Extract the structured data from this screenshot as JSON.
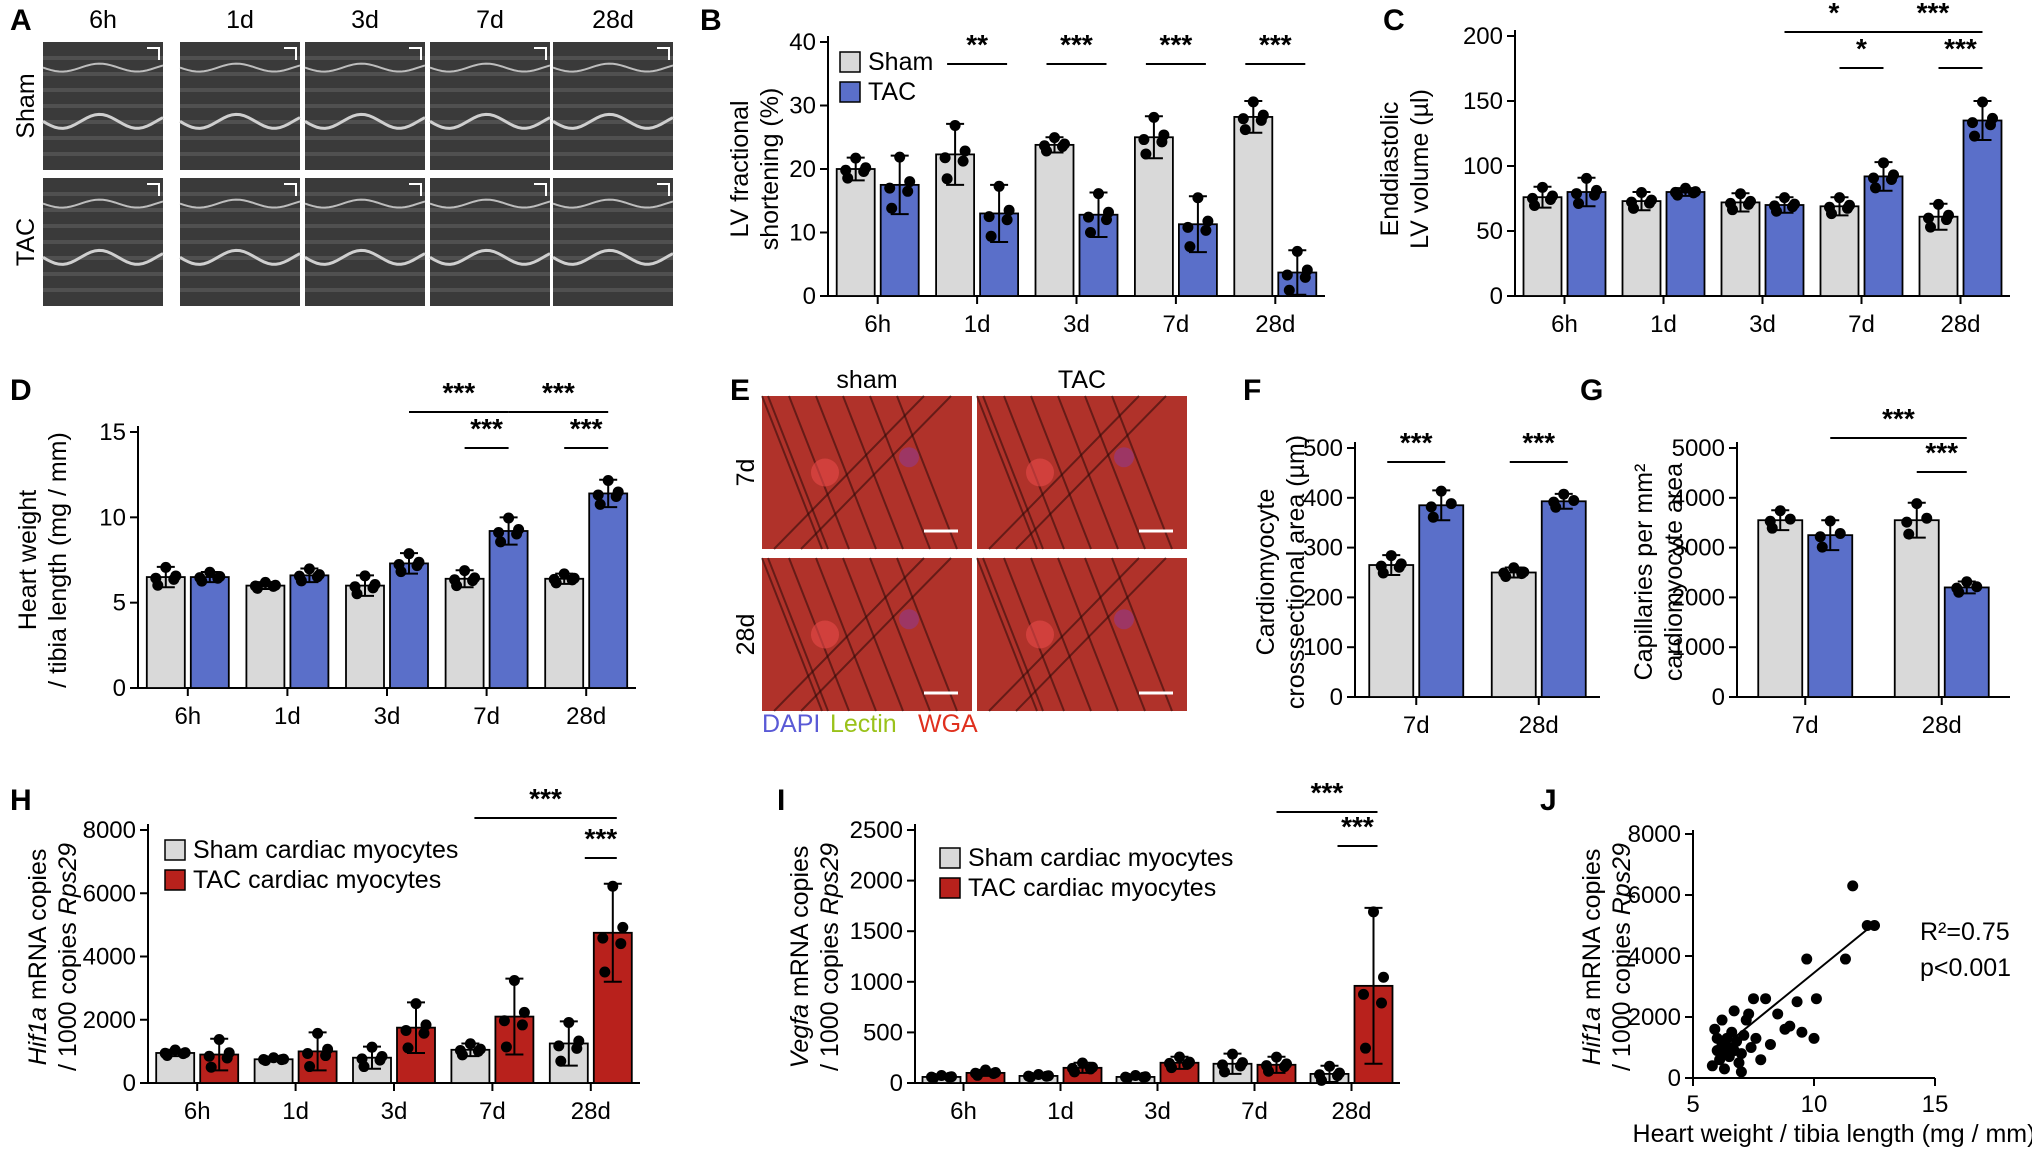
{
  "colors": {
    "sham": "#d9d9d9",
    "tac_blue": "#5a6fc9",
    "tac_red": "#b8211c",
    "dapi": "#5a5ad6",
    "lectin": "#9ac21a",
    "wga": "#e0301e"
  },
  "panel_letters": {
    "A": "A",
    "B": "B",
    "C": "C",
    "D": "D",
    "E": "E",
    "F": "F",
    "G": "G",
    "H": "H",
    "I": "I",
    "J": "J"
  },
  "panelA": {
    "cols": [
      "6h",
      "1d",
      "3d",
      "7d",
      "28d"
    ],
    "rows": [
      "Sham",
      "TAC"
    ]
  },
  "panelE": {
    "cols": [
      "sham",
      "TAC"
    ],
    "rows": [
      "7d",
      "28d"
    ],
    "stains": [
      "DAPI",
      "Lectin",
      "WGA"
    ]
  },
  "chart_data": [
    {
      "id": "B",
      "type": "bar",
      "categories": [
        "6h",
        "1d",
        "3d",
        "7d",
        "28d"
      ],
      "ylabel": "LV fractional shortening (%)",
      "ylabel_lines": [
        "LV fractional",
        "shortening (%)"
      ],
      "yticks": [
        0,
        10,
        20,
        30,
        40
      ],
      "ylim": [
        0,
        40
      ],
      "legend": [
        "Sham",
        "TAC"
      ],
      "series": [
        {
          "name": "Sham",
          "values": [
            20,
            22.3,
            23.8,
            25,
            28.2
          ],
          "err": [
            1.8,
            4.8,
            1.2,
            3.3,
            2.5
          ]
        },
        {
          "name": "TAC",
          "values": [
            17.5,
            13,
            12.8,
            11.3,
            3.7
          ],
          "err": [
            4.6,
            4.5,
            3.5,
            4.4,
            3.5
          ]
        }
      ],
      "brackets": [
        {
          "cats": [
            1,
            1
          ],
          "label": "**"
        },
        {
          "cats": [
            2,
            2
          ],
          "label": "***"
        },
        {
          "cats": [
            3,
            3
          ],
          "label": "***"
        },
        {
          "cats": [
            4,
            4
          ],
          "label": "***"
        }
      ]
    },
    {
      "id": "C",
      "type": "bar",
      "categories": [
        "6h",
        "1d",
        "3d",
        "7d",
        "28d"
      ],
      "ylabel": "Enddiastolic LV volume (µl)",
      "ylabel_lines": [
        "Enddiastolic",
        "LV volume (µl)"
      ],
      "yticks": [
        0,
        50,
        100,
        150,
        200
      ],
      "ylim": [
        0,
        200
      ],
      "series": [
        {
          "name": "Sham",
          "values": [
            76,
            73,
            72,
            69,
            61
          ],
          "err": [
            8,
            7,
            7,
            7,
            10
          ]
        },
        {
          "name": "TAC",
          "values": [
            80,
            80,
            70,
            92,
            135
          ],
          "err": [
            11,
            3,
            6,
            11,
            15
          ]
        }
      ],
      "brackets": [
        {
          "from": "3d-TAC",
          "to": "7d-TAC",
          "label": "*",
          "level": 2
        },
        {
          "from": "7d-TAC",
          "to": "28d-TAC",
          "label": "***",
          "level": 2
        },
        {
          "from": "7d-sham",
          "to": "7d-TAC",
          "label": "*",
          "level": 1
        },
        {
          "from": "28d-sham",
          "to": "28d-TAC",
          "label": "***",
          "level": 1
        }
      ]
    },
    {
      "id": "D",
      "type": "bar",
      "categories": [
        "6h",
        "1d",
        "3d",
        "7d",
        "28d"
      ],
      "ylabel": "Heart weight / tibia length (mg / mm)",
      "ylabel_lines": [
        "Heart weight",
        "/ tibia length (mg / mm)"
      ],
      "yticks": [
        0,
        5,
        10,
        15
      ],
      "ylim": [
        0,
        15
      ],
      "series": [
        {
          "name": "Sham",
          "values": [
            6.5,
            6.0,
            6.0,
            6.4,
            6.4
          ],
          "err": [
            0.6,
            0.2,
            0.6,
            0.5,
            0.3
          ]
        },
        {
          "name": "TAC",
          "values": [
            6.5,
            6.6,
            7.3,
            9.2,
            11.4
          ],
          "err": [
            0.3,
            0.4,
            0.6,
            0.8,
            0.8
          ]
        }
      ],
      "brackets": [
        {
          "label": "***"
        },
        {
          "label": "***"
        },
        {
          "label": "***"
        },
        {
          "label": "***"
        }
      ]
    },
    {
      "id": "F",
      "type": "bar",
      "categories": [
        "7d",
        "28d"
      ],
      "ylabel": "Cardiomyocyte crosssectional area (µm)",
      "ylabel_lines": [
        "Cardiomyocyte",
        "crosssectional area (µm)"
      ],
      "yticks": [
        0,
        100,
        200,
        300,
        400,
        500
      ],
      "ylim": [
        0,
        500
      ],
      "series": [
        {
          "name": "Sham",
          "values": [
            265,
            250
          ],
          "err": [
            20,
            10
          ]
        },
        {
          "name": "TAC",
          "values": [
            385,
            393
          ],
          "err": [
            30,
            15
          ]
        }
      ],
      "brackets": [
        {
          "label": "***"
        },
        {
          "label": "***"
        }
      ]
    },
    {
      "id": "G",
      "type": "bar",
      "categories": [
        "7d",
        "28d"
      ],
      "ylabel": "Capillaries per mm² cardiomyocyte area",
      "ylabel_lines": [
        "Capillaries per mm²",
        "cardiomyocyte area"
      ],
      "yticks": [
        0,
        1000,
        2000,
        3000,
        4000,
        5000
      ],
      "ylim": [
        0,
        5000
      ],
      "series": [
        {
          "name": "Sham",
          "values": [
            3550,
            3550
          ],
          "err": [
            200,
            350
          ]
        },
        {
          "name": "TAC",
          "values": [
            3250,
            2200
          ],
          "err": [
            300,
            120
          ]
        }
      ],
      "brackets": [
        {
          "label": "***"
        },
        {
          "label": "***"
        }
      ]
    },
    {
      "id": "H",
      "type": "bar",
      "categories": [
        "6h",
        "1d",
        "3d",
        "7d",
        "28d"
      ],
      "ylabel": "Hif1a mRNA copies / 1000 copies Rps29",
      "ylabel_parts": {
        "l1_it": "Hif1a",
        "l1": " mRNA copies",
        "l2": "/ 1000 copies ",
        "l2_it": "Rps29"
      },
      "yticks": [
        0,
        2000,
        4000,
        6000,
        8000
      ],
      "ylim": [
        0,
        8000
      ],
      "legend": [
        "Sham cardiac myocytes",
        "TAC cardiac myocytes"
      ],
      "series": [
        {
          "name": "Sham cardiac myocytes",
          "values": [
            950,
            750,
            800,
            1050,
            1250
          ],
          "err": [
            100,
            50,
            350,
            200,
            700
          ]
        },
        {
          "name": "TAC cardiac myocytes",
          "values": [
            900,
            1000,
            1750,
            2100,
            4750
          ],
          "err": [
            500,
            600,
            800,
            1200,
            1550
          ]
        }
      ],
      "brackets": [
        {
          "label": "***"
        },
        {
          "label": "***"
        }
      ]
    },
    {
      "id": "I",
      "type": "bar",
      "categories": [
        "6h",
        "1d",
        "3d",
        "7d",
        "28d"
      ],
      "ylabel": "Vegfa mRNA copies / 1000 copies Rps29",
      "ylabel_parts": {
        "l1_it": "Vegfa",
        "l1": " mRNA copies",
        "l2": "/ 1000 copies ",
        "l2_it": "Rps29"
      },
      "yticks": [
        0,
        500,
        1000,
        1500,
        2000,
        2500
      ],
      "ylim": [
        0,
        2500
      ],
      "legend": [
        "Sham cardiac myocytes",
        "TAC cardiac myocytes"
      ],
      "series": [
        {
          "name": "Sham cardiac myocytes",
          "values": [
            60,
            70,
            60,
            190,
            90
          ],
          "err": [
            15,
            15,
            15,
            100,
            80
          ]
        },
        {
          "name": "TAC cardiac myocytes",
          "values": [
            100,
            150,
            200,
            180,
            960
          ],
          "err": [
            30,
            50,
            60,
            80,
            770
          ]
        }
      ],
      "brackets": [
        {
          "label": "***"
        },
        {
          "label": "***"
        }
      ]
    },
    {
      "id": "J",
      "type": "scatter",
      "xlabel": "Heart weight / tibia length (mg / mm)",
      "ylabel": "Hif1a mRNA copies / 1000 copies Rps29",
      "ylabel_parts": {
        "l1_it": "Hif1a",
        "l1": " mRNA copies",
        "l2": "/ 1000 copies ",
        "l2_it": "Rps29"
      },
      "xticks": [
        5,
        10,
        15
      ],
      "xlim": [
        5,
        15
      ],
      "yticks": [
        0,
        2000,
        4000,
        6000,
        8000
      ],
      "ylim": [
        0,
        8000
      ],
      "annotation": [
        "R²=0.75",
        "p<0.001"
      ],
      "fit": {
        "x": [
          5.9,
          12.4
        ],
        "y": [
          800,
          5000
        ]
      },
      "points": [
        [
          5.8,
          400
        ],
        [
          6.0,
          900
        ],
        [
          6.1,
          600
        ],
        [
          6.2,
          1100
        ],
        [
          6.3,
          800
        ],
        [
          6.4,
          1300
        ],
        [
          6.5,
          1000
        ],
        [
          6.5,
          700
        ],
        [
          6.6,
          1500
        ],
        [
          6.7,
          900
        ],
        [
          6.8,
          1200
        ],
        [
          6.9,
          500
        ],
        [
          7.0,
          800
        ],
        [
          7.1,
          1400
        ],
        [
          7.2,
          1900
        ],
        [
          7.3,
          2100
        ],
        [
          7.4,
          1000
        ],
        [
          7.5,
          2600
        ],
        [
          7.6,
          1300
        ],
        [
          7.8,
          600
        ],
        [
          8.0,
          2600
        ],
        [
          8.2,
          1100
        ],
        [
          8.5,
          2100
        ],
        [
          8.8,
          1600
        ],
        [
          6.2,
          1900
        ],
        [
          6.0,
          1300
        ],
        [
          6.7,
          2200
        ],
        [
          9.0,
          1700
        ],
        [
          9.5,
          1500
        ],
        [
          9.3,
          2500
        ],
        [
          9.7,
          3900
        ],
        [
          10.1,
          2600
        ],
        [
          10.0,
          1300
        ],
        [
          11.3,
          3900
        ],
        [
          11.6,
          6300
        ],
        [
          12.2,
          5000
        ],
        [
          12.5,
          5000
        ],
        [
          6.3,
          300
        ],
        [
          7.0,
          200
        ],
        [
          5.9,
          1600
        ]
      ]
    }
  ]
}
